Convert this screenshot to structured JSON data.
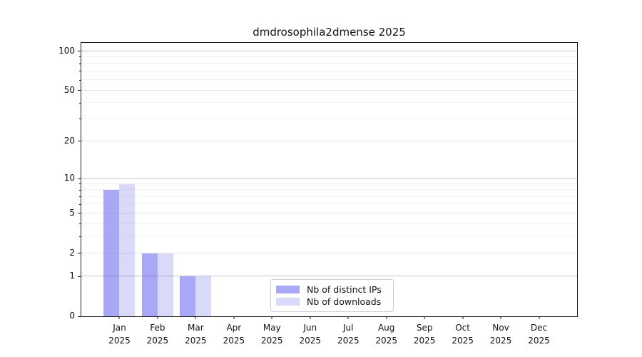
{
  "chart_data": {
    "type": "bar",
    "title": "dmdrosophila2dmense 2025",
    "categories": [
      "Jan 2025",
      "Feb 2025",
      "Mar 2025",
      "Apr 2025",
      "May 2025",
      "Jun 2025",
      "Jul 2025",
      "Aug 2025",
      "Sep 2025",
      "Oct 2025",
      "Nov 2025",
      "Dec 2025"
    ],
    "x_tick_months": [
      "Jan",
      "Feb",
      "Mar",
      "Apr",
      "May",
      "Jun",
      "Jul",
      "Aug",
      "Sep",
      "Oct",
      "Nov",
      "Dec"
    ],
    "x_tick_year": "2025",
    "series": [
      {
        "name": "Nb of distinct IPs",
        "color": "#a8a8f6",
        "values": [
          8,
          2,
          1,
          0,
          0,
          0,
          0,
          0,
          0,
          0,
          0,
          0
        ]
      },
      {
        "name": "Nb of downloads",
        "color": "#d9d9f9",
        "values": [
          9,
          2,
          1,
          0,
          0,
          0,
          0,
          0,
          0,
          0,
          0,
          0
        ]
      }
    ],
    "yscale": "log1p",
    "ylim": [
      0,
      115.6
    ],
    "y_tick_values": [
      0,
      1,
      2,
      5,
      10,
      20,
      50,
      100
    ],
    "y_tick_labels": [
      "0",
      "1",
      "2",
      "5",
      "10",
      "20",
      "50",
      "100"
    ],
    "y_major_values": [
      1,
      10,
      100
    ],
    "y_minor_values": [
      3,
      4,
      6,
      7,
      8,
      9,
      30,
      40,
      60,
      70,
      80,
      90
    ],
    "grid": true,
    "legend_position": "lower center",
    "xlabel": "",
    "ylabel": ""
  },
  "colors": {
    "distinct_ips": "#a8a8f6",
    "downloads": "#d9d9f9",
    "axis": "#1a1a1a",
    "grid_major": "#c6c6cc",
    "grid_minor": "#f0f0f2"
  }
}
